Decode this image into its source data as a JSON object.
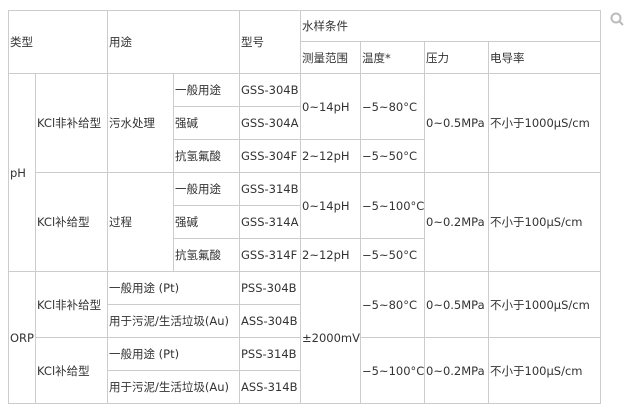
{
  "header": {
    "type": "类型",
    "usage": "用途",
    "model": "型号",
    "conditions": "水样条件",
    "range": "测量范围",
    "temp": "温度*",
    "pressure": "压力",
    "conductivity": "电导率"
  },
  "ph": {
    "label": "pH",
    "group1": {
      "kind": "KCl非补给型",
      "usage": "污水处理",
      "rows": [
        {
          "sub": "一般用途",
          "model": "GSS-304B"
        },
        {
          "sub": "强碱",
          "model": "GSS-304A"
        },
        {
          "sub": "抗氢氟酸",
          "model": "GSS-304F"
        }
      ],
      "range1": "0~14pH",
      "temp1": "−5~80°C",
      "range2": "2~12pH",
      "temp2": "−5~50°C",
      "pressure": "0~0.5MPa",
      "conductivity": "不小于1000μS/cm"
    },
    "group2": {
      "kind": "KCl补给型",
      "usage": "过程",
      "rows": [
        {
          "sub": "一般用途",
          "model": "GSS-314B"
        },
        {
          "sub": "强碱",
          "model": "GSS-314A"
        },
        {
          "sub": "抗氢氟酸",
          "model": "GSS-314F"
        }
      ],
      "range1": "0~14pH",
      "temp1": "−5~100°C",
      "range2": "2~12pH",
      "temp2": "−5~50°C",
      "pressure": "0~0.2MPa",
      "conductivity": "不小于100μS/cm"
    }
  },
  "orp": {
    "label": "ORP",
    "range": "±2000mV",
    "group1": {
      "kind": "KCl非补给型",
      "rows": [
        {
          "usage": "一般用途 (Pt)",
          "model": "PSS-304B"
        },
        {
          "usage": "用于污泥/生活垃圾(Au)",
          "model": "ASS-304B"
        }
      ],
      "temp": "−5~80°C",
      "pressure": "0~0.5MPa",
      "conductivity": "不小于1000μS/cm"
    },
    "group2": {
      "kind": "KCl补给型",
      "rows": [
        {
          "usage": "一般用途 (Pt)",
          "model": "PSS-314B"
        },
        {
          "usage": "用于污泥/生活垃圾(Au)",
          "model": "ASS-314B"
        }
      ],
      "temp": "−5~100°C",
      "pressure": "0~0.2MPa",
      "conductivity": "不小于100μS/cm"
    }
  },
  "icons": {
    "search": "search-icon"
  }
}
